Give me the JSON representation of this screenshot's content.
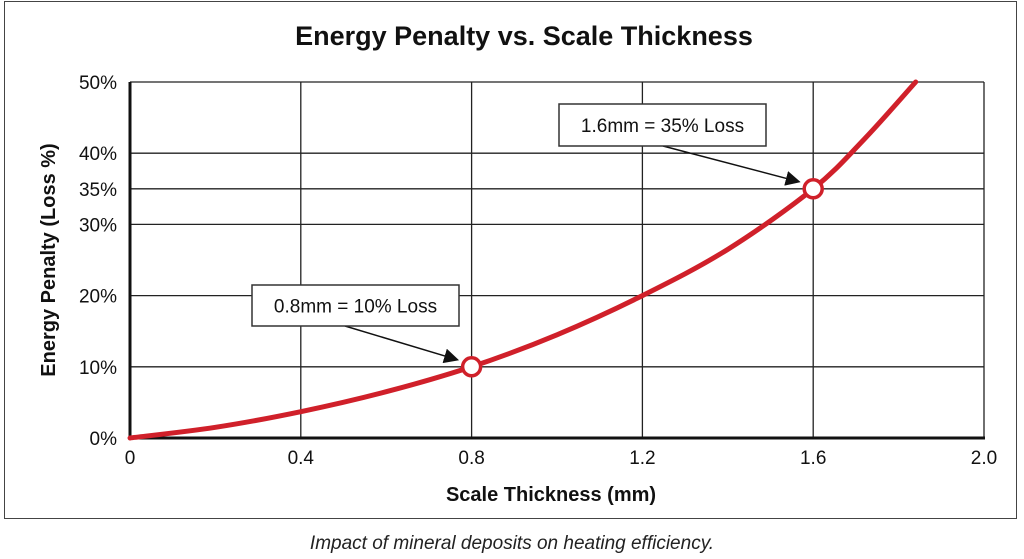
{
  "chart_data": {
    "type": "line",
    "title": "Energy Penalty vs. Scale Thickness",
    "xlabel": "Scale Thickness (mm)",
    "ylabel": "Energy Penalty (Loss %)",
    "xlim": [
      0,
      2.0
    ],
    "ylim": [
      0,
      50
    ],
    "x_ticks": [
      0,
      0.4,
      0.8,
      1.2,
      1.6,
      2.0
    ],
    "x_tick_labels": [
      "0",
      "0.4",
      "0.8",
      "1.2",
      "1.6",
      "2.0"
    ],
    "y_ticks": [
      0,
      10,
      20,
      30,
      35,
      40,
      50
    ],
    "y_tick_labels": [
      "0%",
      "10%",
      "20%",
      "30%",
      "35%",
      "40%",
      "50%"
    ],
    "grid": true,
    "series": [
      {
        "color": "#d0202a",
        "x": [
          0,
          0.2,
          0.4,
          0.6,
          0.8,
          1.0,
          1.2,
          1.4,
          1.6,
          1.72,
          1.84
        ],
        "y": [
          0,
          1.5,
          3.7,
          6.5,
          10,
          14.5,
          20,
          26.5,
          35,
          42,
          50
        ]
      }
    ],
    "annotations": [
      {
        "text": "0.8mm = 10% Loss",
        "x": 0.8,
        "y": 10
      },
      {
        "text": "1.6mm = 35% Loss",
        "x": 1.6,
        "y": 35
      }
    ]
  },
  "caption": "Impact of mineral deposits on heating efficiency."
}
